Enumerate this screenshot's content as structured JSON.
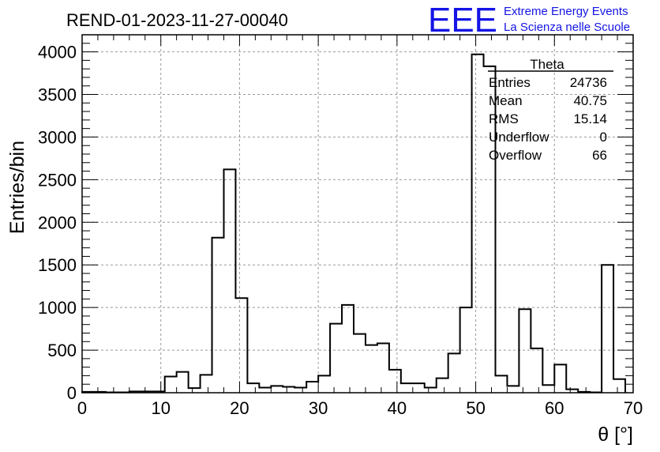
{
  "title": "REND-01-2023-11-27-00040",
  "logo": {
    "mark": "EEE",
    "line1": "Extreme Energy Events",
    "line2": "La Scienza nelle Scuole",
    "color": "#1414e6"
  },
  "stats": {
    "name": "Theta",
    "rows": [
      {
        "label": "Entries",
        "value": "24736"
      },
      {
        "label": "Mean",
        "value": "40.75"
      },
      {
        "label": "RMS",
        "value": "15.14"
      },
      {
        "label": "Underflow",
        "value": "0"
      },
      {
        "label": "Overflow",
        "value": "66"
      }
    ]
  },
  "chart_data": {
    "type": "histogram",
    "xlabel": "θ [°]",
    "ylabel": "Entries/bin",
    "xlim": [
      0,
      70
    ],
    "ylim": [
      0,
      4200
    ],
    "xticks": [
      0,
      10,
      20,
      30,
      40,
      50,
      60,
      70
    ],
    "yticks": [
      0,
      500,
      1000,
      1500,
      2000,
      2500,
      3000,
      3500,
      4000
    ],
    "grid": true,
    "bin_edges": [
      0,
      1.5,
      3,
      4.5,
      6,
      7.5,
      9,
      10.5,
      12,
      13.5,
      15,
      16.5,
      18,
      19.5,
      21,
      22.5,
      24,
      25.5,
      27,
      28.5,
      30,
      31.5,
      33,
      34.5,
      36,
      37.5,
      39,
      40.5,
      42,
      43.5,
      45,
      46.5,
      48,
      49.5,
      51,
      52.5,
      54,
      55.5,
      57,
      58.5,
      60,
      61.5,
      63,
      64.5,
      66,
      67.5,
      69
    ],
    "values": [
      10,
      10,
      5,
      5,
      15,
      15,
      15,
      190,
      245,
      55,
      210,
      1820,
      2620,
      1110,
      110,
      60,
      80,
      70,
      60,
      130,
      200,
      810,
      1030,
      690,
      560,
      580,
      270,
      110,
      110,
      60,
      170,
      460,
      1000,
      3970,
      3830,
      200,
      80,
      980,
      520,
      90,
      330,
      40,
      10,
      5,
      1500,
      160
    ]
  }
}
